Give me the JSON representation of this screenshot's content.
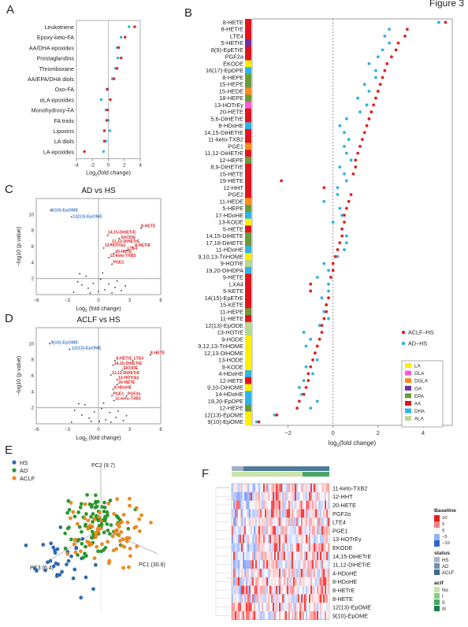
{
  "figure": {
    "title": "Figure 3"
  },
  "panels": {
    "A": "A",
    "B": "B",
    "C": "C",
    "D": "D",
    "E": "E",
    "F": "F"
  },
  "colors": {
    "aclf": "#e02020",
    "ad": "#2fb0e8",
    "hs": "#2a6bb5",
    "pca_ad": "#2a9a2a",
    "pca_aclf": "#f08a1a",
    "volcano_dot": "#333333",
    "volcano_hi_red": "#e02020",
    "volcano_hi_blue": "#4a7fc8"
  },
  "chart_data": [
    {
      "id": "A",
      "type": "scatter",
      "xlabel": "Log2(fold change)",
      "xlim": [
        -4,
        4
      ],
      "xticks": [
        -4,
        -2,
        0,
        2,
        4
      ],
      "categories": [
        "Leukotriene",
        "Epoxy-keto-FA",
        "AA/DHA epoxides",
        "Prostaglandins",
        "Thromboxane",
        "AA/EPA/DHA diols",
        "Oxo-FA",
        "αLA epoxides",
        "Monohydroxy-FA",
        "FA triols",
        "Lipoxins",
        "LA diols",
        "LA epoxides"
      ],
      "series": [
        {
          "name": "ACLF-HS",
          "values": [
            3.3,
            2.1,
            1.3,
            1.6,
            1.1,
            0.7,
            -0.1,
            0.25,
            -0.1,
            -0.2,
            -0.5,
            -0.5,
            -3.0
          ]
        },
        {
          "name": "AD-HS",
          "values": [
            2.6,
            1.6,
            1.1,
            1.2,
            0.9,
            0.5,
            -0.2,
            -0.9,
            -0.3,
            0.0,
            0.2,
            -0.3,
            -0.6
          ]
        }
      ]
    },
    {
      "id": "B",
      "type": "scatter",
      "xlabel": "log2(fold change)",
      "xlim": [
        -3.6,
        5.3
      ],
      "xticks": [
        -2,
        0,
        2,
        4
      ],
      "categories": [
        "8-HETE",
        "8-HETrE",
        "LTE4",
        "5-HETrE",
        "8(9)-EpETrE",
        "PGF2a",
        "EKODE",
        "16(17)-EpDPE",
        "8-HEPE",
        "15-HEPE",
        "15-HEDE",
        "18-HEPE",
        "13-HOTrEy",
        "20-HETE",
        "5,6-DiHETrE",
        "8-HDoHE",
        "14,15-DiHETrE",
        "11-keto-TXB2",
        "PGE1",
        "11,12-DiHETrE",
        "12-HEPE",
        "8,9-DiHETrE",
        "15-HETE",
        "19-HETE",
        "12-HHT",
        "PGE2",
        "11-HEDE",
        "5-HEPE",
        "17-HDoHE",
        "13-KODE",
        "5-HETE",
        "14,15-DiHETE",
        "17,18-DiHETE",
        "11-HDoHE",
        "9,10,13-TriHOME",
        "9-HOTrE",
        "19,20-DiHDPA",
        "9-HETE",
        "LXA4",
        "5-KETE",
        "14(15)-EpETrE",
        "15-KETE",
        "11-HEPE",
        "11-HETE",
        "12(13)-EpODE",
        "13-HOTrE",
        "9-HODE",
        "9,12,13-TriHOME",
        "12,13-DiHOME",
        "13-HODE",
        "9-KODE",
        "4-HDoHE",
        "12-HETE",
        "9,10-DiHOME",
        "14-HDoHE",
        "19,20-EpDPE",
        "12-HEPE",
        "12(13)-EpOME",
        "9(10)-EpOME"
      ],
      "class_colors": [
        "#e0141e",
        "#e0141e",
        "#e0141e",
        "#7030a0",
        "#e0141e",
        "#e0141e",
        "#ffee00",
        "#2db4e8",
        "#6a9a3a",
        "#6a9a3a",
        "#ff8c1a",
        "#6a9a3a",
        "#ff5ad0",
        "#e0141e",
        "#e0141e",
        "#2db4e8",
        "#e0141e",
        "#e0141e",
        "#ff8c1a",
        "#e0141e",
        "#6a9a3a",
        "#e0141e",
        "#e0141e",
        "#e0141e",
        "#e0141e",
        "#e0141e",
        "#ff8c1a",
        "#6a9a3a",
        "#2db4e8",
        "#ffee00",
        "#e0141e",
        "#6a9a3a",
        "#6a9a3a",
        "#2db4e8",
        "#ffee00",
        "#b8d890",
        "#2db4e8",
        "#e0141e",
        "#e0141e",
        "#e0141e",
        "#e0141e",
        "#e0141e",
        "#6a9a3a",
        "#e0141e",
        "#b8d890",
        "#b8d890",
        "#ffee00",
        "#ffee00",
        "#ffee00",
        "#ffee00",
        "#ffee00",
        "#2db4e8",
        "#e0141e",
        "#ffee00",
        "#2db4e8",
        "#2db4e8",
        "#6a9a3a",
        "#ffee00",
        "#ffee00"
      ],
      "series": [
        {
          "name": "ACLF-HS",
          "values": [
            5.0,
            3.3,
            3.2,
            2.9,
            2.8,
            2.6,
            2.4,
            2.3,
            2.2,
            2.1,
            2.0,
            1.9,
            1.8,
            1.7,
            1.6,
            1.5,
            1.4,
            1.3,
            1.2,
            1.1,
            1.0,
            1.0,
            0.9,
            -2.3,
            -0.4,
            0.8,
            0.7,
            0.6,
            0.5,
            0.5,
            0.4,
            0.4,
            0.3,
            0.2,
            0.1,
            0.0,
            0.0,
            -0.1,
            -1.0,
            -1.0,
            -0.2,
            -0.3,
            -0.3,
            -0.4,
            -0.5,
            -0.5,
            -0.6,
            -0.7,
            -0.8,
            -0.9,
            -1.0,
            -1.1,
            -1.1,
            -1.2,
            -1.3,
            -1.5,
            -1.6,
            -2.5,
            -3.3
          ]
        },
        {
          "name": "AD-HS",
          "values": [
            4.7,
            2.5,
            2.3,
            2.5,
            2.2,
            2.0,
            1.6,
            1.9,
            1.9,
            1.4,
            1.6,
            1.1,
            1.5,
            1.2,
            0.6,
            0.3,
            0.5,
            0.7,
            0.5,
            0.6,
            0.8,
            0.3,
            0.5,
            0.6,
            0.2,
            0.2,
            -0.4,
            0.3,
            0.4,
            0.0,
            0.4,
            0.6,
            0.6,
            0.5,
            0.2,
            -0.4,
            -0.2,
            -0.7,
            -0.2,
            -0.2,
            -0.5,
            -0.3,
            -0.4,
            -0.2,
            -0.6,
            -1.3,
            -1.0,
            -1.2,
            -0.8,
            -0.7,
            -1.2,
            -0.9,
            -1.3,
            -1.5,
            -1.4,
            -0.7,
            -1.0,
            -2.6,
            -3.4
          ]
        }
      ],
      "legend": {
        "placement": "right",
        "items": [
          "ACLF−HS",
          "AD−HS"
        ]
      },
      "class_legend": [
        {
          "label": "LA",
          "color": "#ffee00"
        },
        {
          "label": "GLA",
          "color": "#ff5ad0"
        },
        {
          "label": "DGLA",
          "color": "#ff8c1a"
        },
        {
          "label": "OA",
          "color": "#7030a0"
        },
        {
          "label": "EPA",
          "color": "#6a9a3a"
        },
        {
          "label": "AA",
          "color": "#e0141e"
        },
        {
          "label": "DHA",
          "color": "#2db4e8"
        },
        {
          "label": "ALA",
          "color": "#b8d890"
        }
      ]
    },
    {
      "id": "C",
      "type": "scatter",
      "title": "AD vs HS",
      "xlabel": "Log2 (fold change)",
      "ylabel": "−log10 (p value)",
      "xlim": [
        -6,
        6
      ],
      "ylim": [
        0,
        12
      ],
      "xticks": [
        -6,
        -3,
        0,
        3,
        6
      ],
      "yticks": [
        2,
        4,
        6,
        8,
        10
      ],
      "labels_blue": [
        {
          "text": "9(10)-EpOME",
          "x": -4.6,
          "y": 10.4
        },
        {
          "text": "12(13)-EpOME",
          "x": -2.5,
          "y": 9.6
        }
      ],
      "labels_red": [
        {
          "text": "8-HETE",
          "x": 4.1,
          "y": 8.4
        },
        {
          "text": "14,15-DiHETrE",
          "x": 0.9,
          "y": 7.6
        },
        {
          "text": "EKODE",
          "x": 2.2,
          "y": 7.0
        },
        {
          "text": "11,12-DiHETrE",
          "x": 1.3,
          "y": 6.5
        },
        {
          "text": "13-HOTrEγ",
          "x": 0.6,
          "y": 6.0
        },
        {
          "text": "8-HETrE",
          "x": 3.5,
          "y": 6.0
        },
        {
          "text": "LTE4",
          "x": 2.8,
          "y": 5.6
        },
        {
          "text": "20-HETE",
          "x": 1.6,
          "y": 5.2
        },
        {
          "text": "11-keto-TXB2",
          "x": 1.1,
          "y": 4.7
        },
        {
          "text": "PGE1",
          "x": 1.4,
          "y": 3.9
        }
      ],
      "points": [
        [
          -4.6,
          10.5
        ],
        [
          -2.6,
          9.7
        ],
        [
          4.1,
          8.3
        ],
        [
          0.9,
          7.4
        ],
        [
          2.0,
          7.0
        ],
        [
          1.2,
          6.3
        ],
        [
          0.5,
          5.8
        ],
        [
          3.3,
          5.9
        ],
        [
          2.7,
          5.5
        ],
        [
          1.5,
          5.1
        ],
        [
          1.0,
          4.6
        ],
        [
          1.3,
          3.8
        ],
        [
          -2.0,
          1.6
        ],
        [
          -1.6,
          1.2
        ],
        [
          -1.0,
          0.8
        ],
        [
          -0.5,
          1.4
        ],
        [
          0.2,
          1.9
        ],
        [
          0.6,
          0.6
        ],
        [
          1.0,
          1.3
        ],
        [
          1.6,
          0.9
        ],
        [
          2.2,
          0.5
        ],
        [
          -2.4,
          0.3
        ],
        [
          -1.2,
          2.3
        ],
        [
          0.4,
          2.7
        ],
        [
          1.8,
          1.7
        ],
        [
          -0.8,
          0.2
        ],
        [
          2.6,
          1.1
        ],
        [
          -1.8,
          2.6
        ],
        [
          0.0,
          0.4
        ],
        [
          1.3,
          0.2
        ]
      ]
    },
    {
      "id": "D",
      "type": "scatter",
      "title": "ACLF vs HS",
      "xlabel": "Log2 (fold change)",
      "ylabel": "−log10 (p value)",
      "xlim": [
        -6,
        6
      ],
      "ylim": [
        0,
        12
      ],
      "xticks": [
        -6,
        -3,
        0,
        3,
        6
      ],
      "yticks": [
        2,
        4,
        6,
        8,
        10
      ],
      "labels_blue": [
        {
          "text": "9(10)-EpOME",
          "x": -4.6,
          "y": 10.0
        },
        {
          "text": "12(13)-EpOME",
          "x": -2.6,
          "y": 9.3
        }
      ],
      "labels_red": [
        {
          "text": "8-HETE",
          "x": 5.0,
          "y": 8.7
        },
        {
          "text": "8-HETrE",
          "x": 1.7,
          "y": 8.0
        },
        {
          "text": "LTE4",
          "x": 3.4,
          "y": 8.0
        },
        {
          "text": "14,15-DiHETrE",
          "x": 1.5,
          "y": 7.4
        },
        {
          "text": "EKODE",
          "x": 2.4,
          "y": 6.8
        },
        {
          "text": "11,12-DiHETrE",
          "x": 1.3,
          "y": 6.2
        },
        {
          "text": "13-HOTrEγ",
          "x": 1.9,
          "y": 5.6
        },
        {
          "text": "20-HETE",
          "x": 1.9,
          "y": 5.0
        },
        {
          "text": "8-HDoHE",
          "x": 1.5,
          "y": 4.4
        },
        {
          "text": "PGE1",
          "x": 1.4,
          "y": 3.6
        },
        {
          "text": "PGF2a",
          "x": 2.8,
          "y": 3.6
        },
        {
          "text": "11-keto-TXB2",
          "x": 1.6,
          "y": 3.0
        }
      ],
      "points": [
        [
          -4.7,
          10.0
        ],
        [
          -2.8,
          9.3
        ],
        [
          5.0,
          8.6
        ],
        [
          1.6,
          7.9
        ],
        [
          3.3,
          7.9
        ],
        [
          1.4,
          7.3
        ],
        [
          2.3,
          6.7
        ],
        [
          1.2,
          6.1
        ],
        [
          1.8,
          5.5
        ],
        [
          1.8,
          4.9
        ],
        [
          1.4,
          4.3
        ],
        [
          1.3,
          3.5
        ],
        [
          2.7,
          3.5
        ],
        [
          1.5,
          2.9
        ],
        [
          -2.3,
          1.7
        ],
        [
          -1.6,
          1.1
        ],
        [
          -0.9,
          0.7
        ],
        [
          -0.4,
          1.5
        ],
        [
          0.3,
          1.9
        ],
        [
          0.7,
          0.5
        ],
        [
          1.1,
          1.4
        ],
        [
          1.7,
          0.8
        ],
        [
          2.4,
          0.4
        ],
        [
          -2.6,
          0.2
        ],
        [
          -1.3,
          2.4
        ],
        [
          0.5,
          2.6
        ],
        [
          1.9,
          1.6
        ],
        [
          -0.7,
          0.3
        ],
        [
          2.7,
          1.0
        ],
        [
          -1.9,
          2.5
        ],
        [
          0.1,
          0.3
        ],
        [
          1.2,
          0.2
        ]
      ]
    },
    {
      "id": "E",
      "type": "scatter",
      "axes3d": {
        "pc1": "PC1 (30.6)",
        "pc2": "PC2 (9.7)",
        "pc3": "PC3 (6.4)"
      },
      "legend": {
        "placement": "top-left",
        "items": [
          "HS",
          "AD",
          "ACLF"
        ]
      }
    },
    {
      "id": "F",
      "type": "heatmap",
      "rows": [
        "11-keto-TXB2",
        "12-HHT",
        "20-HETE",
        "PGF2α",
        "LTE4",
        "PGE1",
        "13-HOTrEγ",
        "EKODE",
        "14,15-DiHETrE",
        "11,12-DiHETrE",
        "4-HDoHE",
        "8-HDoHE",
        "8-HETrE",
        "8-HETE",
        "12(13)-EpOME",
        "9(10)-EpOME"
      ],
      "legend_baseline": {
        "title": "Baseline",
        "ticks": [
          "10",
          "5",
          "0",
          "−5",
          "−10"
        ]
      },
      "legend_status": {
        "title": "status",
        "items": [
          {
            "label": "HS",
            "color": "#a9b7c6"
          },
          {
            "label": "AD",
            "color": "#6f8fad"
          },
          {
            "label": "ACLF",
            "color": "#3e6a8c"
          }
        ]
      },
      "legend_aclf": {
        "title": "aclf",
        "items": [
          {
            "label": "No",
            "color": "#c9e3a8"
          },
          {
            "label": "I",
            "color": "#8ccc82"
          },
          {
            "label": "II",
            "color": "#4aa56a"
          },
          {
            "label": "III",
            "color": "#1f7a4e"
          }
        ]
      }
    }
  ]
}
